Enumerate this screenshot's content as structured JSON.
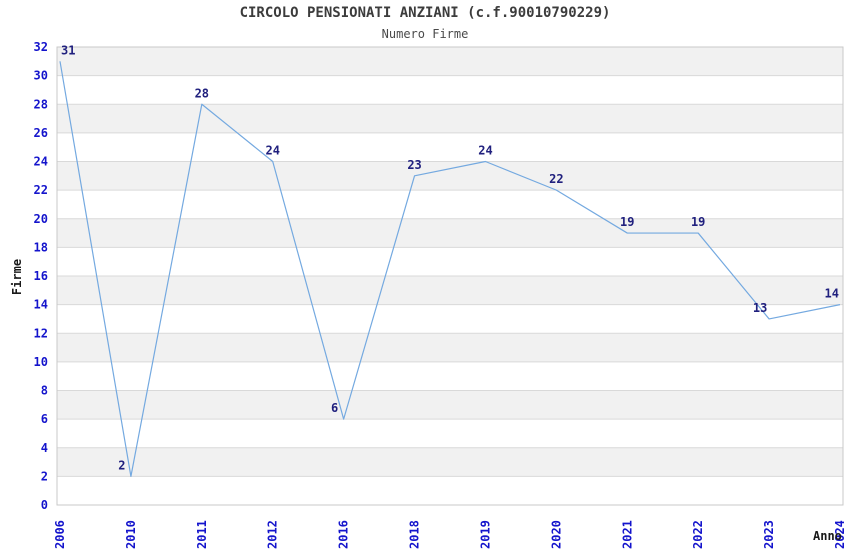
{
  "chart_data": {
    "type": "line",
    "title": "CIRCOLO PENSIONATI ANZIANI (c.f.90010790229)",
    "subtitle": "Numero Firme",
    "xlabel": "Anno",
    "ylabel": "Firme",
    "categories": [
      "2006",
      "2010",
      "2011",
      "2012",
      "2016",
      "2018",
      "2019",
      "2020",
      "2021",
      "2022",
      "2023",
      "2024"
    ],
    "values": [
      31,
      2,
      28,
      24,
      6,
      23,
      24,
      22,
      19,
      19,
      13,
      14
    ],
    "ylim": [
      0,
      32
    ],
    "ytick_step": 2,
    "grid": true,
    "legend": "none",
    "banded_background": true,
    "colors": {
      "line": "#74a9e0",
      "point_label": "#20207e",
      "tick_label": "#1414cc",
      "title": "#3c3c3c",
      "axis_label": "#1a1a1a",
      "band": "#f1f1f1",
      "gridline": "#d9d9d9",
      "border": "#c9c9c9",
      "background": "#ffffff"
    }
  }
}
